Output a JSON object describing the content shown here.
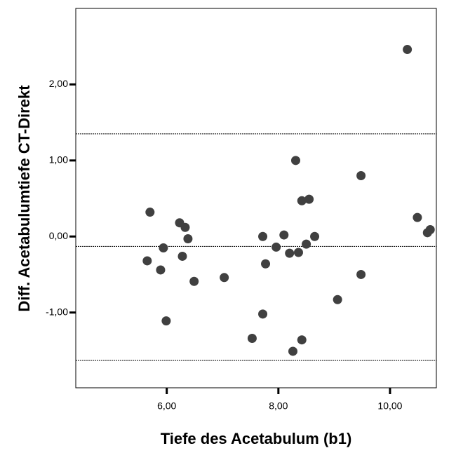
{
  "chart_data": {
    "type": "scatter",
    "x_label": "Tiefe des Acetabulum (b1)",
    "y_label": "Diff. Acetabulumtiefe CT-Direkt",
    "x": [
      10.31,
      5.7,
      5.65,
      5.89,
      5.94,
      5.99,
      6.23,
      6.33,
      6.38,
      6.28,
      6.49,
      7.03,
      7.72,
      7.72,
      7.77,
      7.96,
      8.1,
      8.2,
      8.36,
      8.31,
      8.42,
      8.55,
      8.5,
      8.65,
      7.53,
      8.26,
      8.42,
      9.06,
      9.48,
      9.48,
      10.49,
      10.67,
      10.72
    ],
    "values": [
      2.46,
      0.32,
      -0.32,
      -0.44,
      -0.15,
      -1.11,
      0.18,
      0.12,
      -0.03,
      -0.26,
      -0.59,
      -0.54,
      0.0,
      -1.02,
      -0.36,
      -0.14,
      0.02,
      -0.22,
      -0.21,
      1.0,
      0.47,
      0.49,
      -0.1,
      0.0,
      -1.34,
      -1.51,
      -1.36,
      -0.83,
      0.8,
      -0.5,
      0.25,
      0.05,
      0.09
    ],
    "color": "#404040",
    "reference_lines": [
      1.35,
      -0.13,
      -1.63
    ],
    "xlim": [
      4.37,
      10.83
    ],
    "ylim": [
      -1.99,
      3.0
    ],
    "xticks": [
      {
        "value": 6,
        "label": "6,00"
      },
      {
        "value": 8,
        "label": "8,00"
      },
      {
        "value": 10,
        "label": "10,00"
      }
    ],
    "yticks": [
      {
        "value": -1,
        "label": "-1,00"
      },
      {
        "value": 0,
        "label": "0,00"
      },
      {
        "value": 1,
        "label": "1,00"
      },
      {
        "value": 2,
        "label": "2,00"
      }
    ]
  }
}
